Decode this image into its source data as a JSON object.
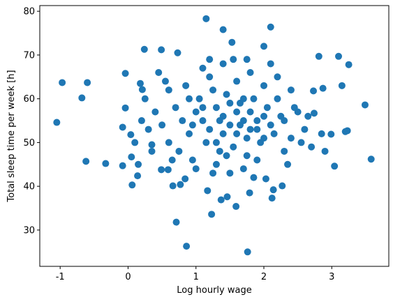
{
  "chart_data": {
    "type": "scatter",
    "xlabel": "Log hourly wage",
    "ylabel": "Total sleep time per week [h]",
    "color": "#1f77b4",
    "xlim": [
      -1.3,
      3.84
    ],
    "ylim": [
      21.7,
      81.3
    ],
    "xticks": [
      -1,
      0,
      1,
      2,
      3
    ],
    "yticks": [
      30,
      40,
      50,
      60,
      70,
      80
    ],
    "x": [
      -1.05,
      -0.97,
      -0.68,
      -0.6,
      -0.62,
      -0.33,
      -0.08,
      -0.04,
      -0.04,
      0.06,
      0.04,
      0.14,
      0.24,
      -0.08,
      0.05,
      0.71,
      0.86,
      1.15,
      1.4,
      1.53,
      2.1,
      2.0,
      1.76,
      1.59,
      1.23,
      0.84,
      3.1,
      3.25,
      3.15,
      3.49,
      3.58,
      3.04,
      3.23,
      2.87,
      2.81,
      2.99,
      2.73,
      2.74,
      2.14,
      2.12,
      2.03,
      2.27,
      1.79,
      1.37,
      1.17,
      1.46,
      0.77,
      0.66,
      0.49,
      0.59,
      0.35,
      0.49,
      0.73,
      0.18,
      0.21,
      1.0,
      1.1,
      1.2,
      1.3,
      1.4,
      1.5,
      1.6,
      1.7,
      1.8,
      1.9,
      2.0,
      2.1,
      1.05,
      1.15,
      1.25,
      1.35,
      1.45,
      1.55,
      1.65,
      1.75,
      1.85,
      1.95,
      2.05,
      2.15,
      0.8,
      0.9,
      0.7,
      0.6,
      0.5,
      0.4,
      0.3,
      2.3,
      2.4,
      2.5,
      2.2,
      2.3,
      0.85,
      0.95,
      1.2,
      1.3,
      1.6,
      1.7,
      2.0,
      1.9,
      0.75,
      2.4,
      2.6,
      2.7,
      0.2,
      0.25,
      0.35,
      0.55,
      0.65,
      2.35,
      2.45,
      1.1,
      1.4,
      1.8,
      2.2,
      1.0,
      1.5,
      1.85,
      1.25,
      0.45,
      2.1,
      1.55,
      1.75,
      1.2,
      0.6,
      0.9,
      1.3,
      1.6,
      1.8,
      1.4,
      1.7,
      2.0,
      1.1,
      1.5,
      1.9,
      1.35,
      1.65,
      2.25,
      0.95,
      1.45,
      1.75,
      2.55,
      2.85,
      2.65,
      0.1,
      0.15,
      2.9,
      3.2
    ],
    "values": [
      54.6,
      63.7,
      60.2,
      63.7,
      45.7,
      45.2,
      44.7,
      57.9,
      65.8,
      40.3,
      51.8,
      42.4,
      71.3,
      53.5,
      46.7,
      31.8,
      26.3,
      78.3,
      75.8,
      72.9,
      76.4,
      72.0,
      25.0,
      35.4,
      33.6,
      41.7,
      69.7,
      67.8,
      63.0,
      58.6,
      46.2,
      44.6,
      52.7,
      62.4,
      69.7,
      51.9,
      61.8,
      56.7,
      39.2,
      37.3,
      41.7,
      40.1,
      38.5,
      36.9,
      39.0,
      37.6,
      40.4,
      40.1,
      43.8,
      43.8,
      49.5,
      71.2,
      70.5,
      63.5,
      62.1,
      57,
      55,
      53,
      58,
      56,
      54,
      52,
      55,
      57,
      53,
      56,
      54,
      60,
      50,
      62,
      48,
      61,
      49,
      59,
      51,
      60,
      50,
      58,
      52,
      55,
      52,
      58,
      50,
      54,
      57,
      53,
      55,
      51,
      57,
      60,
      48,
      63,
      46,
      65,
      45,
      64,
      44,
      63,
      46,
      48,
      62,
      53,
      49,
      55,
      60,
      48,
      64,
      46,
      45,
      58,
      67,
      68,
      66,
      65,
      44,
      43,
      42,
      43,
      66,
      68,
      69,
      69,
      69,
      62,
      60,
      50,
      57,
      53,
      52,
      60,
      51,
      58,
      59,
      55,
      55,
      54,
      56,
      54,
      47,
      47,
      50,
      52,
      56,
      50,
      45,
      48,
      52.5
    ]
  }
}
